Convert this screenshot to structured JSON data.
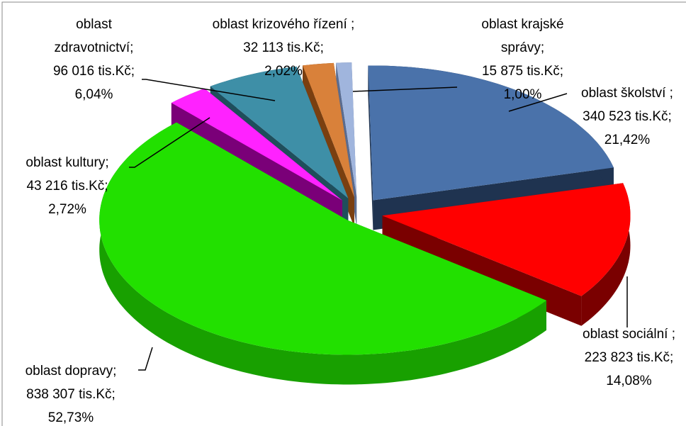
{
  "chart_data": {
    "type": "pie3d",
    "categories": [
      "oblast školství ;",
      "oblast sociální ;",
      "oblast dopravy;",
      "oblast kultury;",
      "oblast zdravotnictví;",
      "oblast krizového řízení ;",
      "oblast krajské správy;"
    ],
    "values": [
      340523,
      223823,
      838307,
      43216,
      96016,
      32113,
      15875
    ],
    "value_labels": [
      "340 523 tis.Kč;",
      "223 823 tis.Kč;",
      "838 307 tis.Kč;",
      "43 216 tis.Kč;",
      "96 016 tis.Kč;",
      "32 113 tis.Kč;",
      "15 875 tis.Kč;"
    ],
    "percents": [
      21.42,
      14.08,
      52.73,
      2.72,
      6.04,
      2.02,
      1.0
    ],
    "percent_labels": [
      "21,42%",
      "14,08%",
      "52,73%",
      "2,72%",
      "6,04%",
      "2,02%",
      "1,00%"
    ],
    "colors": [
      "#4a72aa",
      "#ff0000",
      "#22e000",
      "#ff22ff",
      "#3e8fa7",
      "#d9813a",
      "#a0b5dd"
    ],
    "side_colors": [
      "#1f3350",
      "#7a0000",
      "#18a000",
      "#7a0078",
      "#1f4e5c",
      "#7a3f10",
      "#5a6c90"
    ]
  }
}
